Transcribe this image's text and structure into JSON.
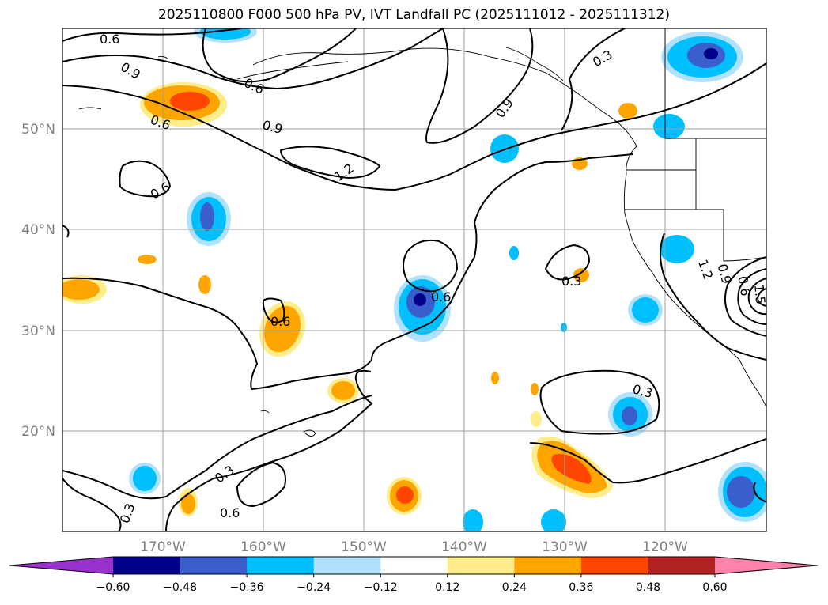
{
  "title": "2025110800 F000 500 hPa PV, IVT Landfall PC (2025111012 - 2025111312)",
  "lat_labels": [
    "50°N",
    "40°N",
    "30°N",
    "20°N"
  ],
  "lon_labels": [
    "170°W",
    "160°W",
    "150°W",
    "140°W",
    "130°W",
    "120°W"
  ],
  "contour_labels": [
    "0.6",
    "0.9",
    "0.6",
    "0.6",
    "0.9",
    "1.2",
    "0.6",
    "0.9",
    "0.3",
    "0.6",
    "0.6",
    "0.3",
    "0.3",
    "0.3",
    "0.6",
    "0.3",
    "0.6",
    "0.9",
    "1.2",
    "1.5"
  ],
  "colorbar": {
    "tick_labels": [
      "−0.60",
      "−0.48",
      "−0.36",
      "−0.24",
      "−0.12",
      "0.12",
      "0.24",
      "0.36",
      "0.48",
      "0.60"
    ],
    "bins": [
      {
        "name": "under",
        "color": "#9932cc"
      },
      {
        "name": "b1",
        "color": "#00008b"
      },
      {
        "name": "b2",
        "color": "#3a5fcd"
      },
      {
        "name": "b3",
        "color": "#00bfff"
      },
      {
        "name": "b4",
        "color": "#b0e2ff"
      },
      {
        "name": "b5",
        "color": "#ffffff"
      },
      {
        "name": "b6",
        "color": "#ffec8b"
      },
      {
        "name": "b7",
        "color": "#ffa500"
      },
      {
        "name": "b8",
        "color": "#ff4500"
      },
      {
        "name": "b9",
        "color": "#b22222"
      },
      {
        "name": "over",
        "color": "#ff82ab"
      }
    ]
  }
}
